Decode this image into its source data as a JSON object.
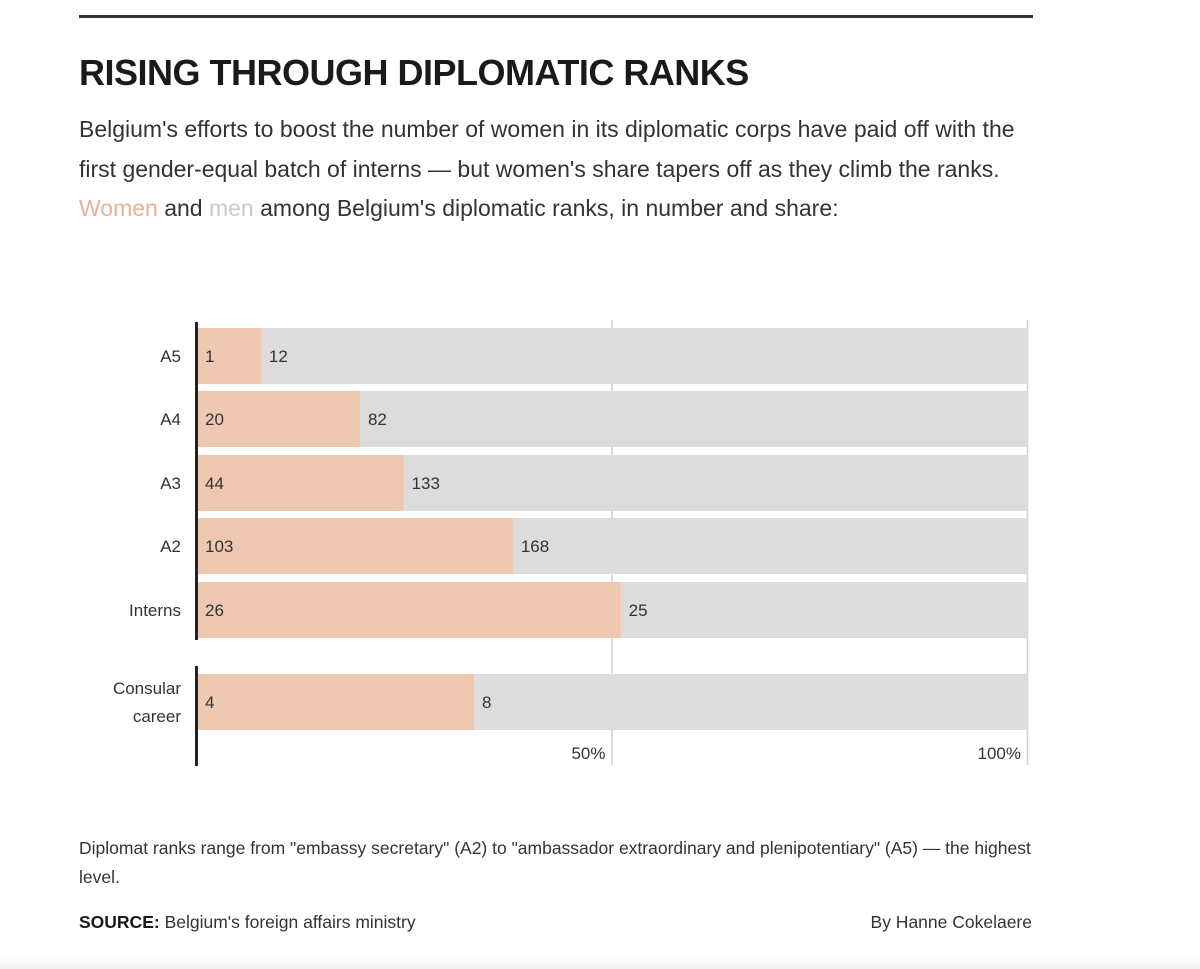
{
  "title": "RISING THROUGH DIPLOMATIC RANKS",
  "intro": {
    "part1": "Belgium's efforts to boost the number of women in its diplomatic corps have paid off with the first gender-equal batch of interns — but women's share tapers off as they climb the ranks. ",
    "women": "Women",
    "and": " and ",
    "men": "men",
    "part2": " among Belgium's diplomatic ranks, in number and share:"
  },
  "colors": {
    "women": "#efc8b2",
    "men": "#dcdcdc",
    "women_text": "#e4b39a",
    "men_text": "#c9c9c9",
    "axis": "#222222",
    "gridline": "#cfcfcf"
  },
  "chart_data": {
    "type": "bar",
    "stacked": true,
    "orientation": "horizontal",
    "normalized": true,
    "categories": [
      "A5",
      "A4",
      "A3",
      "A2",
      "Interns",
      "Consular career"
    ],
    "series": [
      {
        "name": "Women",
        "values": [
          1,
          20,
          44,
          103,
          26,
          4
        ]
      },
      {
        "name": "Men",
        "values": [
          12,
          82,
          133,
          168,
          25,
          8
        ]
      }
    ],
    "x_ticks": [
      {
        "value": 50,
        "label": "50%"
      },
      {
        "value": 100,
        "label": "100%"
      }
    ],
    "xlim": [
      0,
      100
    ],
    "xlabel": "",
    "ylabel": ""
  },
  "footnote": "Diplomat ranks range from \"embassy secretary\" (A2) to \"ambassador extraordinary and plenipotentiary\" (A5) — the highest level.",
  "source": {
    "label": "SOURCE:",
    "text": " Belgium's foreign affairs ministry"
  },
  "byline": "By Hanne Cokelaere"
}
